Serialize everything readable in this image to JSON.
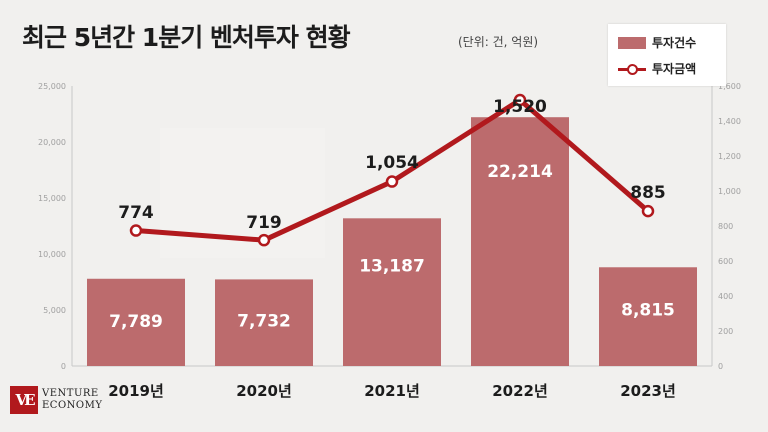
{
  "header": {
    "title": "최근 5년간 1분기 벤처투자 현황",
    "unit": "(단위: 건, 억원)"
  },
  "legend": {
    "bar_label": "투자건수",
    "line_label": "투자금액"
  },
  "logo": {
    "mark": "VE",
    "line1": "VENTURE",
    "line2": "ECONOMY"
  },
  "colors": {
    "bar": "#bc6b6d",
    "line": "#b1191d",
    "background": "#f1f0ee"
  },
  "chart_data": {
    "type": "bar",
    "categories": [
      "2019년",
      "2020년",
      "2021년",
      "2022년",
      "2023년"
    ],
    "series": [
      {
        "name": "투자건수",
        "type": "bar",
        "axis": "left",
        "values": [
          7789,
          7732,
          13187,
          22214,
          8815
        ],
        "labels": [
          "7,789",
          "7,732",
          "13,187",
          "22,214",
          "8,815"
        ]
      },
      {
        "name": "투자금액",
        "type": "line",
        "axis": "right",
        "values": [
          774,
          719,
          1054,
          1520,
          885
        ],
        "labels": [
          "774",
          "719",
          "1,054",
          "1,520",
          "885"
        ]
      }
    ],
    "y_left": {
      "min": 0,
      "max": 25000,
      "ticks": [
        0,
        5000,
        10000,
        15000,
        20000,
        25000
      ],
      "tick_labels": [
        "0",
        "5,000",
        "10,000",
        "15,000",
        "20,000",
        "25,000"
      ]
    },
    "y_right": {
      "min": 0,
      "max": 1600,
      "ticks": [
        0,
        200,
        400,
        600,
        800,
        1000,
        1200,
        1400,
        1600
      ],
      "tick_labels": [
        "0",
        "200",
        "400",
        "600",
        "800",
        "1,000",
        "1,200",
        "1,400",
        "1,600"
      ]
    },
    "grid": false,
    "legend_position": "top-right"
  }
}
